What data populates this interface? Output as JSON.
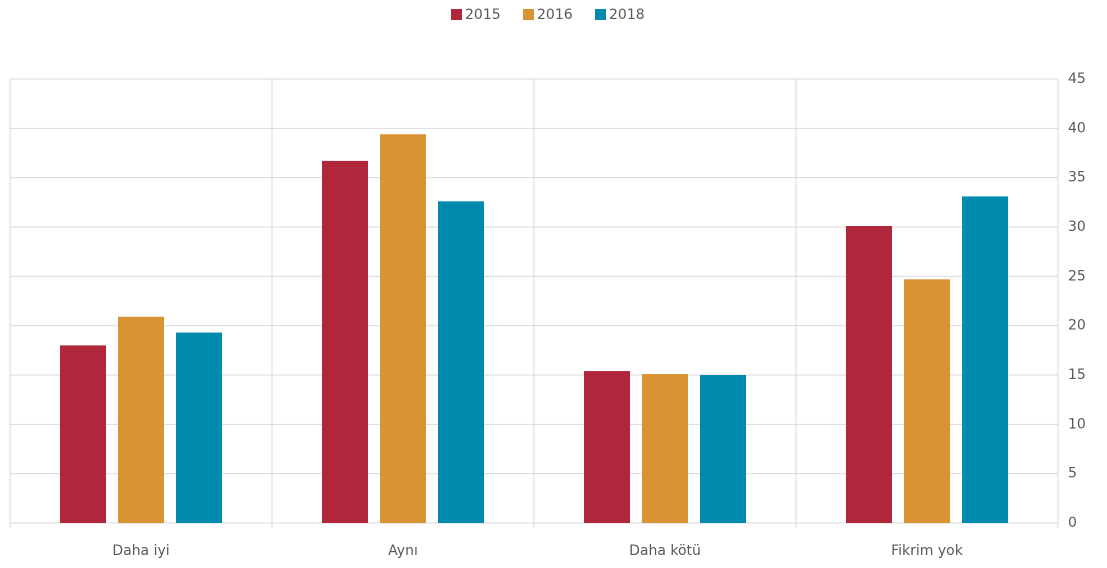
{
  "chart_data": {
    "type": "bar",
    "categories": [
      "Daha iyi",
      "Aynı",
      "Daha kötü",
      "Fikrim yok"
    ],
    "series": [
      {
        "name": "2015",
        "color": "#b0263a",
        "values": [
          18,
          36.7,
          15.4,
          30.1
        ]
      },
      {
        "name": "2016",
        "color": "#d89433",
        "values": [
          20.9,
          39.4,
          15.1,
          24.7
        ]
      },
      {
        "name": "2018",
        "color": "#008bad",
        "values": [
          19.3,
          32.6,
          15.0,
          33.1
        ]
      }
    ],
    "ylim": [
      0,
      45
    ],
    "yticks": [
      0,
      5,
      10,
      15,
      20,
      25,
      30,
      35,
      40,
      45
    ],
    "grid": true,
    "legend": "top"
  }
}
